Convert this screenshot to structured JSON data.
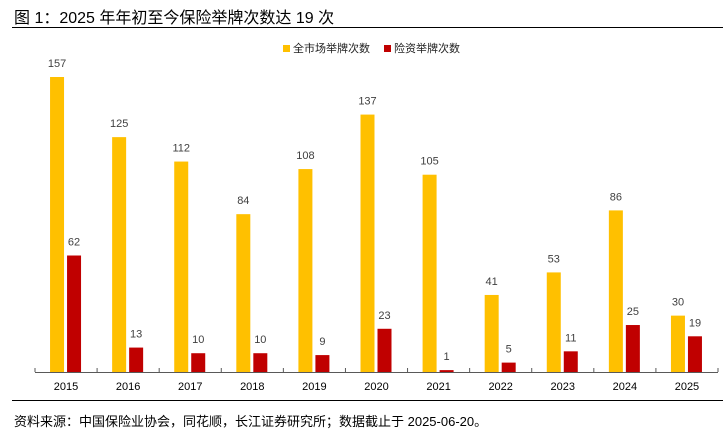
{
  "figure": {
    "title": "图 1：2025 年年初至今保险举牌次数达 19 次",
    "source": "资料来源：中国保险业协会，同花顺，长江证券研究所；数据截止于 2025-06-20。"
  },
  "legend": {
    "items": [
      {
        "label": "全市场举牌次数",
        "color": "#FFC000"
      },
      {
        "label": "险资举牌次数",
        "color": "#C00000"
      }
    ]
  },
  "chart_data": {
    "type": "bar",
    "title": "图 1：2025 年年初至今保险举牌次数达 19 次",
    "xlabel": "",
    "ylabel": "",
    "categories": [
      "2015",
      "2016",
      "2017",
      "2018",
      "2019",
      "2020",
      "2021",
      "2022",
      "2023",
      "2024",
      "2025"
    ],
    "series": [
      {
        "name": "全市场举牌次数",
        "color": "#FFC000",
        "values": [
          157,
          125,
          112,
          84,
          108,
          137,
          105,
          41,
          53,
          86,
          30
        ]
      },
      {
        "name": "险资举牌次数",
        "color": "#C00000",
        "values": [
          62,
          13,
          10,
          10,
          9,
          23,
          1,
          5,
          11,
          25,
          19
        ]
      }
    ],
    "ylim": [
      0,
      160
    ],
    "grid": false,
    "data_labels": true,
    "legend_position": "top-right"
  }
}
